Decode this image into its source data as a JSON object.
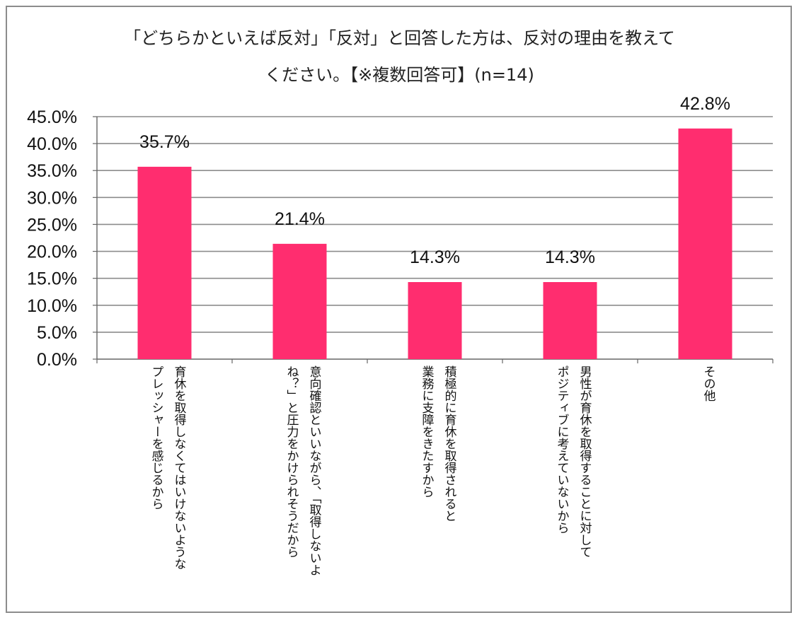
{
  "chart_data": {
    "type": "bar",
    "title": "「どちらかといえば反対」「反対」と回答した方は、反対の理由を教えて",
    "title_line2": "ください。【※複数回答可】(n=14)",
    "categories": [
      [
        "育休を取得しなくてはいけないような",
        "プレッシャーを感じるから"
      ],
      [
        "意向確認といいながら、「取得しないよ",
        "ね？」と圧力をかけられそうだから"
      ],
      [
        "積極的に育休を取得されると",
        "業務に支障をきたすから"
      ],
      [
        "男性が育休を取得することに対して",
        "ポジティブに考えていないから"
      ],
      [
        "その他"
      ]
    ],
    "values": [
      35.7,
      21.4,
      14.3,
      14.3,
      42.8
    ],
    "value_labels": [
      "35.7%",
      "21.4%",
      "14.3%",
      "14.3%",
      "42.8%"
    ],
    "ylim": [
      0,
      45
    ],
    "yticks": [
      "0.0%",
      "5.0%",
      "10.0%",
      "15.0%",
      "20.0%",
      "25.0%",
      "30.0%",
      "35.0%",
      "40.0%",
      "45.0%"
    ],
    "ytick_values": [
      0,
      5,
      10,
      15,
      20,
      25,
      30,
      35,
      40,
      45
    ],
    "grid": true,
    "xlabel": "",
    "ylabel": "",
    "bar_color": "#ff2d6f",
    "grid_color": "#8c8c8c"
  }
}
